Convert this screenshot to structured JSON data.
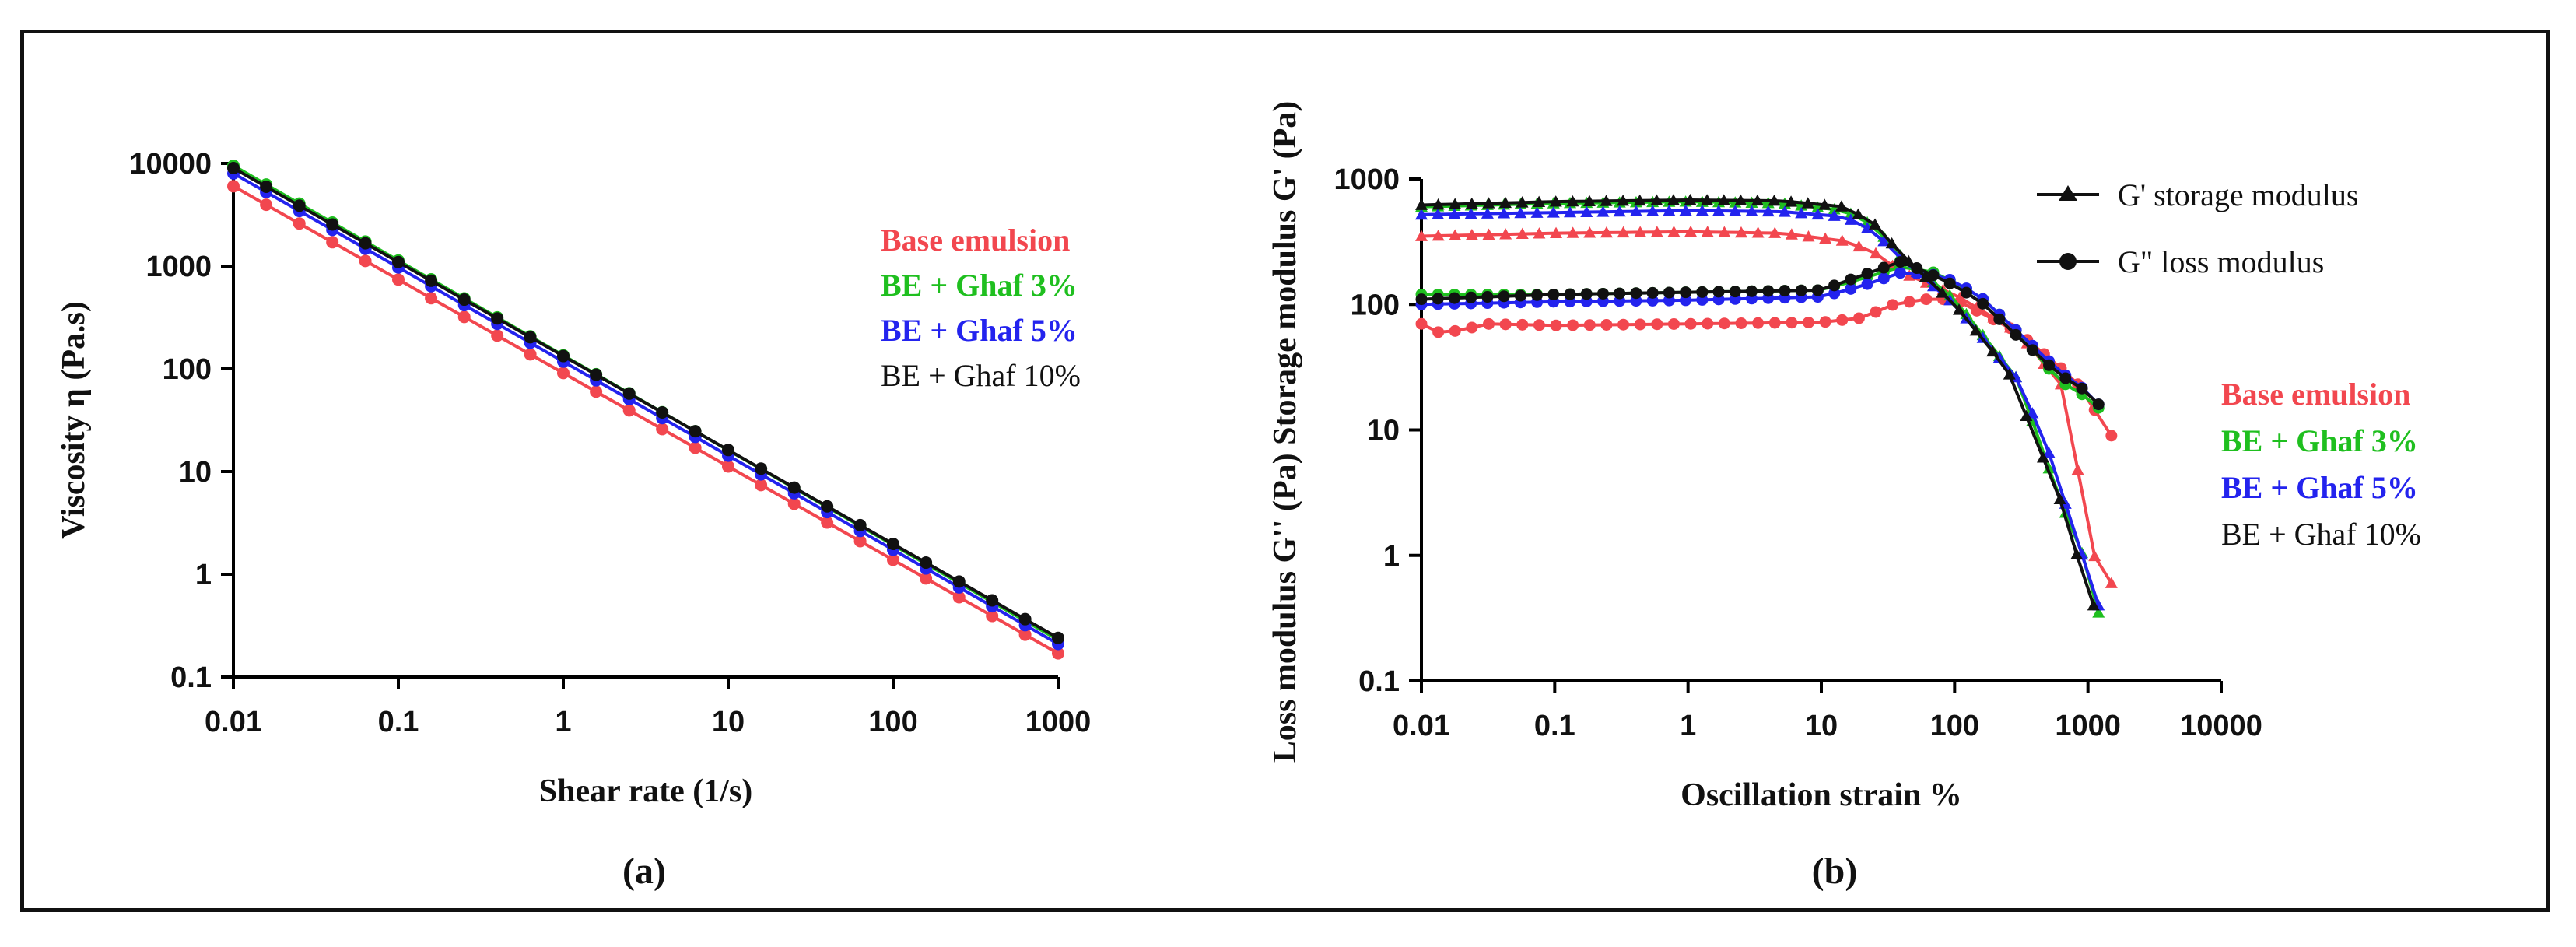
{
  "chart_data": [
    {
      "type": "line",
      "panel_label": "(a)",
      "xlabel": "Shear rate (1/s)",
      "ylabel": "Viscosity η (Pa.s)",
      "xscale": "log",
      "yscale": "log",
      "xlim": [
        0.01,
        1000
      ],
      "ylim": [
        0.1,
        10000
      ],
      "x_ticks": [
        "0.01",
        "0.1",
        "1",
        "10",
        "100",
        "1000"
      ],
      "y_ticks": [
        "0.1",
        "1",
        "10",
        "100",
        "1000",
        "10000"
      ],
      "legend_position": "right",
      "x": [
        0.01,
        0.0158,
        0.0251,
        0.0398,
        0.0631,
        0.1,
        0.158,
        0.251,
        0.398,
        0.631,
        1,
        1.58,
        2.51,
        3.98,
        6.31,
        10,
        15.8,
        25.1,
        39.8,
        63.1,
        100,
        158,
        251,
        398,
        631,
        1000
      ],
      "series": [
        {
          "name": "Base emulsion",
          "color": "#f2474f",
          "bold": true,
          "eta_at_0_01": 6000,
          "eta_at_1000": 0.17
        },
        {
          "name": "BE + Ghaf 3%",
          "color": "#1fbf1f",
          "bold": true,
          "eta_at_0_01": 9500,
          "eta_at_1000": 0.23
        },
        {
          "name": "BE + Ghaf 5%",
          "color": "#2323ee",
          "bold": true,
          "eta_at_0_01": 8000,
          "eta_at_1000": 0.21
        },
        {
          "name": "BE + Ghaf 10%",
          "color": "#111111",
          "bold": false,
          "eta_at_0_01": 9000,
          "eta_at_1000": 0.24
        }
      ]
    },
    {
      "type": "line",
      "panel_label": "(b)",
      "xlabel": "Oscillation strain %",
      "ylabel": "Loss modulus G'' (Pa)  Storage modulus G' (Pa)",
      "xscale": "log",
      "yscale": "log",
      "xlim": [
        0.01,
        10000
      ],
      "ylim": [
        0.1,
        1000
      ],
      "x_ticks": [
        "0.01",
        "0.1",
        "1",
        "10",
        "100",
        "1000",
        "10000"
      ],
      "y_ticks": [
        "0.1",
        "1",
        "10",
        "100",
        "1000"
      ],
      "legend_position": "right",
      "marker_legend": [
        {
          "marker": "triangle",
          "label": "G' storage modulus"
        },
        {
          "marker": "circle",
          "label": "G\" loss modulus"
        }
      ],
      "series": [
        {
          "name": "Base emulsion",
          "color": "#f2474f",
          "bold": true,
          "storage": [
            [
              0.01,
              350
            ],
            [
              0.1,
              370
            ],
            [
              1,
              380
            ],
            [
              5,
              370
            ],
            [
              15,
              320
            ],
            [
              25,
              260
            ],
            [
              40,
              180
            ],
            [
              100,
              120
            ],
            [
              300,
              60
            ],
            [
              700,
              20
            ],
            [
              1000,
              1.2
            ],
            [
              1500,
              0.6
            ]
          ],
          "loss": [
            [
              0.01,
              70
            ],
            [
              0.013,
              60
            ],
            [
              0.02,
              62
            ],
            [
              0.03,
              70
            ],
            [
              0.1,
              68
            ],
            [
              1,
              70
            ],
            [
              10,
              72
            ],
            [
              20,
              78
            ],
            [
              35,
              100
            ],
            [
              60,
              110
            ],
            [
              100,
              110
            ],
            [
              300,
              60
            ],
            [
              800,
              25
            ],
            [
              1500,
              9
            ]
          ]
        },
        {
          "name": "BE + Ghaf 3%",
          "color": "#1fbf1f",
          "bold": true,
          "storage": [
            [
              0.01,
              600
            ],
            [
              0.1,
              640
            ],
            [
              1,
              660
            ],
            [
              5,
              640
            ],
            [
              15,
              560
            ],
            [
              25,
              420
            ],
            [
              40,
              240
            ],
            [
              100,
              110
            ],
            [
              300,
              25
            ],
            [
              600,
              3
            ],
            [
              1000,
              0.8
            ],
            [
              1200,
              0.35
            ]
          ],
          "loss": [
            [
              0.01,
              120
            ],
            [
              0.1,
              120
            ],
            [
              1,
              125
            ],
            [
              10,
              130
            ],
            [
              20,
              160
            ],
            [
              40,
              200
            ],
            [
              70,
              180
            ],
            [
              150,
              120
            ],
            [
              300,
              60
            ],
            [
              600,
              25
            ],
            [
              1000,
              18
            ],
            [
              1200,
              15
            ]
          ]
        },
        {
          "name": "BE + Ghaf 5%",
          "color": "#2323ee",
          "bold": true,
          "storage": [
            [
              0.01,
              520
            ],
            [
              0.1,
              540
            ],
            [
              1,
              560
            ],
            [
              5,
              550
            ],
            [
              15,
              500
            ],
            [
              25,
              380
            ],
            [
              40,
              230
            ],
            [
              100,
              100
            ],
            [
              300,
              25
            ],
            [
              500,
              7
            ],
            [
              800,
              1.5
            ],
            [
              1200,
              0.4
            ]
          ],
          "loss": [
            [
              0.01,
              100
            ],
            [
              0.1,
              105
            ],
            [
              1,
              108
            ],
            [
              10,
              115
            ],
            [
              20,
              140
            ],
            [
              40,
              180
            ],
            [
              80,
              170
            ],
            [
              150,
              120
            ],
            [
              300,
              60
            ],
            [
              600,
              30
            ],
            [
              1000,
              20
            ],
            [
              1200,
              16
            ]
          ]
        },
        {
          "name": "BE + Ghaf 10%",
          "color": "#111111",
          "bold": false,
          "storage": [
            [
              0.01,
              620
            ],
            [
              0.1,
              660
            ],
            [
              1,
              680
            ],
            [
              5,
              670
            ],
            [
              15,
              600
            ],
            [
              25,
              440
            ],
            [
              40,
              250
            ],
            [
              100,
              100
            ],
            [
              250,
              30
            ],
            [
              700,
              2
            ],
            [
              900,
              0.7
            ],
            [
              1100,
              0.4
            ]
          ],
          "loss": [
            [
              0.01,
              110
            ],
            [
              0.1,
              120
            ],
            [
              1,
              125
            ],
            [
              10,
              130
            ],
            [
              20,
              170
            ],
            [
              40,
              220
            ],
            [
              80,
              160
            ],
            [
              150,
              110
            ],
            [
              300,
              55
            ],
            [
              600,
              28
            ],
            [
              1000,
              20
            ],
            [
              1200,
              16
            ]
          ]
        }
      ]
    }
  ]
}
